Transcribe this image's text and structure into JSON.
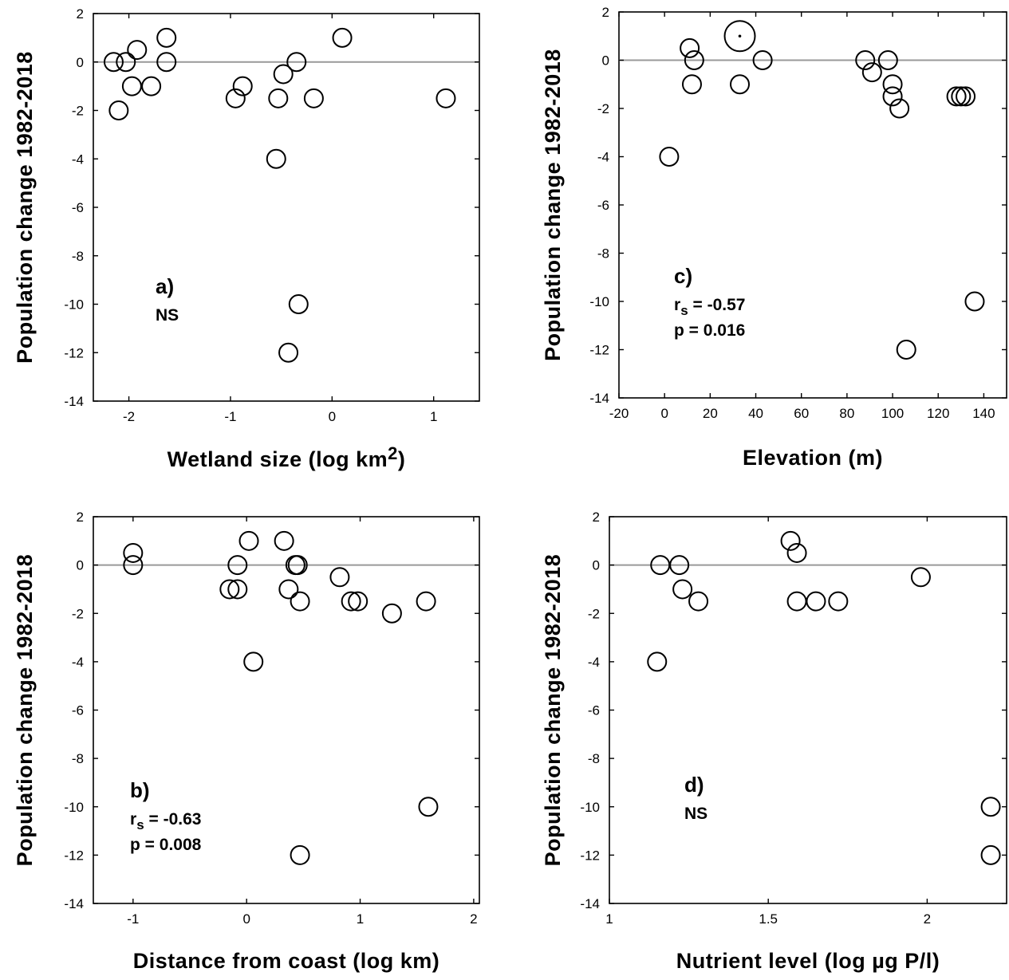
{
  "chart_data": [
    {
      "panel": "a",
      "type": "scatter",
      "title": "",
      "xlabel": "Wetland size (log km",
      "xlabel_sup": "2",
      "xlabel_end": ")",
      "ylabel": "Population change 1982-2018",
      "xlim": [
        -2.35,
        1.45
      ],
      "ylim": [
        -14,
        2
      ],
      "xticks": [
        {
          "v": -2,
          "label": "-2"
        },
        {
          "v": -1,
          "label": "-1"
        },
        {
          "v": 0,
          "label": "0"
        },
        {
          "v": 1,
          "label": "1"
        }
      ],
      "yticks": [
        {
          "v": 2,
          "label": "2"
        },
        {
          "v": 0,
          "label": "0"
        },
        {
          "v": -2,
          "label": "-2"
        },
        {
          "v": -4,
          "label": "-4"
        },
        {
          "v": -6,
          "label": "-6"
        },
        {
          "v": -8,
          "label": "-8"
        },
        {
          "v": -10,
          "label": "-10"
        },
        {
          "v": -12,
          "label": "-12"
        },
        {
          "v": -14,
          "label": "-14"
        }
      ],
      "reference_line": 0,
      "annotation": {
        "label": "a)",
        "lines": [
          "NS"
        ]
      },
      "points": [
        {
          "x": -2.15,
          "y": 0
        },
        {
          "x": -2.1,
          "y": -2
        },
        {
          "x": -2.03,
          "y": 0
        },
        {
          "x": -1.97,
          "y": -1
        },
        {
          "x": -1.92,
          "y": 0.5
        },
        {
          "x": -1.78,
          "y": -1
        },
        {
          "x": -1.63,
          "y": 1
        },
        {
          "x": -1.63,
          "y": 0
        },
        {
          "x": -0.95,
          "y": -1.5
        },
        {
          "x": -0.88,
          "y": -1
        },
        {
          "x": -0.53,
          "y": -1.5
        },
        {
          "x": -0.55,
          "y": -4
        },
        {
          "x": -0.48,
          "y": -0.5
        },
        {
          "x": -0.35,
          "y": 0
        },
        {
          "x": -0.18,
          "y": -1.5
        },
        {
          "x": 0.1,
          "y": 1
        },
        {
          "x": -0.33,
          "y": -10
        },
        {
          "x": -0.43,
          "y": -12
        },
        {
          "x": 1.12,
          "y": -1.5
        }
      ]
    },
    {
      "panel": "c",
      "type": "scatter",
      "title": "",
      "xlabel": "Elevation (m)",
      "ylabel": "Population change 1982-2018",
      "xlim": [
        -20,
        150
      ],
      "ylim": [
        -14,
        2
      ],
      "xticks": [
        {
          "v": -20,
          "label": "-20"
        },
        {
          "v": 0,
          "label": "0"
        },
        {
          "v": 20,
          "label": "20"
        },
        {
          "v": 40,
          "label": "40"
        },
        {
          "v": 60,
          "label": "60"
        },
        {
          "v": 80,
          "label": "80"
        },
        {
          "v": 100,
          "label": "100"
        },
        {
          "v": 120,
          "label": "120"
        },
        {
          "v": 140,
          "label": "140"
        }
      ],
      "yticks": [
        {
          "v": 2,
          "label": "2"
        },
        {
          "v": 0,
          "label": "0"
        },
        {
          "v": -2,
          "label": "-2"
        },
        {
          "v": -4,
          "label": "-4"
        },
        {
          "v": -6,
          "label": "-6"
        },
        {
          "v": -8,
          "label": "-8"
        },
        {
          "v": -10,
          "label": "-10"
        },
        {
          "v": -12,
          "label": "-12"
        },
        {
          "v": -14,
          "label": "-14"
        }
      ],
      "reference_line": 0,
      "annotation": {
        "label": "c)",
        "lines": [
          "rs = -0.57",
          "p = 0.016"
        ]
      },
      "points": [
        {
          "x": 2,
          "y": -4
        },
        {
          "x": 11,
          "y": 0.5
        },
        {
          "x": 13,
          "y": 0
        },
        {
          "x": 12,
          "y": -1
        },
        {
          "x": 33,
          "y": 1,
          "big": true
        },
        {
          "x": 33,
          "y": -1
        },
        {
          "x": 43,
          "y": 0
        },
        {
          "x": 88,
          "y": 0
        },
        {
          "x": 91,
          "y": -0.5
        },
        {
          "x": 98,
          "y": 0
        },
        {
          "x": 100,
          "y": -1
        },
        {
          "x": 100,
          "y": -1.5
        },
        {
          "x": 103,
          "y": -2
        },
        {
          "x": 106,
          "y": -12
        },
        {
          "x": 128,
          "y": -1.5
        },
        {
          "x": 130,
          "y": -1.5
        },
        {
          "x": 132,
          "y": -1.5
        },
        {
          "x": 136,
          "y": -10
        }
      ]
    },
    {
      "panel": "b",
      "type": "scatter",
      "title": "",
      "xlabel": "Distance from coast (log km)",
      "ylabel": "Population change 1982-2018",
      "xlim": [
        -1.35,
        2.05
      ],
      "ylim": [
        -14,
        2
      ],
      "xticks": [
        {
          "v": -1,
          "label": "-1"
        },
        {
          "v": 0,
          "label": "0"
        },
        {
          "v": 1,
          "label": "1"
        },
        {
          "v": 2,
          "label": "2"
        }
      ],
      "yticks": [
        {
          "v": 2,
          "label": "2"
        },
        {
          "v": 0,
          "label": "0"
        },
        {
          "v": -2,
          "label": "-2"
        },
        {
          "v": -4,
          "label": "-4"
        },
        {
          "v": -6,
          "label": "-6"
        },
        {
          "v": -8,
          "label": "-8"
        },
        {
          "v": -10,
          "label": "-10"
        },
        {
          "v": -12,
          "label": "-12"
        },
        {
          "v": -14,
          "label": "-14"
        }
      ],
      "reference_line": 0,
      "annotation": {
        "label": "b)",
        "lines": [
          "rs = -0.63",
          "p = 0.008"
        ]
      },
      "points": [
        {
          "x": -1,
          "y": 0.5
        },
        {
          "x": -1,
          "y": 0
        },
        {
          "x": -0.15,
          "y": -1
        },
        {
          "x": -0.08,
          "y": -1
        },
        {
          "x": -0.08,
          "y": 0
        },
        {
          "x": 0.02,
          "y": 1
        },
        {
          "x": 0.06,
          "y": -4
        },
        {
          "x": 0.33,
          "y": 1
        },
        {
          "x": 0.37,
          "y": -1
        },
        {
          "x": 0.43,
          "y": 0
        },
        {
          "x": 0.45,
          "y": 0
        },
        {
          "x": 0.47,
          "y": -1.5
        },
        {
          "x": 0.47,
          "y": -12
        },
        {
          "x": 0.82,
          "y": -0.5
        },
        {
          "x": 0.92,
          "y": -1.5
        },
        {
          "x": 0.98,
          "y": -1.5
        },
        {
          "x": 1.28,
          "y": -2
        },
        {
          "x": 1.58,
          "y": -1.5
        },
        {
          "x": 1.6,
          "y": -10
        }
      ]
    },
    {
      "panel": "d",
      "type": "scatter",
      "title": "",
      "xlabel": "Nutrient level (log µg P/l)",
      "ylabel": "Population change 1982-2018",
      "xlim": [
        1.0,
        2.25
      ],
      "ylim": [
        -14,
        2
      ],
      "xticks": [
        {
          "v": 1.0,
          "label": "1"
        },
        {
          "v": 1.5,
          "label": "1.5"
        },
        {
          "v": 2.0,
          "label": "2"
        }
      ],
      "yticks": [
        {
          "v": 2,
          "label": "2"
        },
        {
          "v": 0,
          "label": "0"
        },
        {
          "v": -2,
          "label": "-2"
        },
        {
          "v": -4,
          "label": "-4"
        },
        {
          "v": -6,
          "label": "-6"
        },
        {
          "v": -8,
          "label": "-8"
        },
        {
          "v": -10,
          "label": "-10"
        },
        {
          "v": -12,
          "label": "-12"
        },
        {
          "v": -14,
          "label": "-14"
        }
      ],
      "reference_line": 0,
      "annotation": {
        "label": "d)",
        "lines": [
          "NS"
        ]
      },
      "points": [
        {
          "x": 1.15,
          "y": -4
        },
        {
          "x": 1.16,
          "y": 0
        },
        {
          "x": 1.22,
          "y": 0
        },
        {
          "x": 1.23,
          "y": -1
        },
        {
          "x": 1.28,
          "y": -1.5
        },
        {
          "x": 1.57,
          "y": 1
        },
        {
          "x": 1.59,
          "y": 0.5
        },
        {
          "x": 1.59,
          "y": -1.5
        },
        {
          "x": 1.65,
          "y": -1.5
        },
        {
          "x": 1.72,
          "y": -1.5
        },
        {
          "x": 1.98,
          "y": -0.5
        },
        {
          "x": 2.2,
          "y": -10
        },
        {
          "x": 2.2,
          "y": -12
        }
      ]
    }
  ]
}
